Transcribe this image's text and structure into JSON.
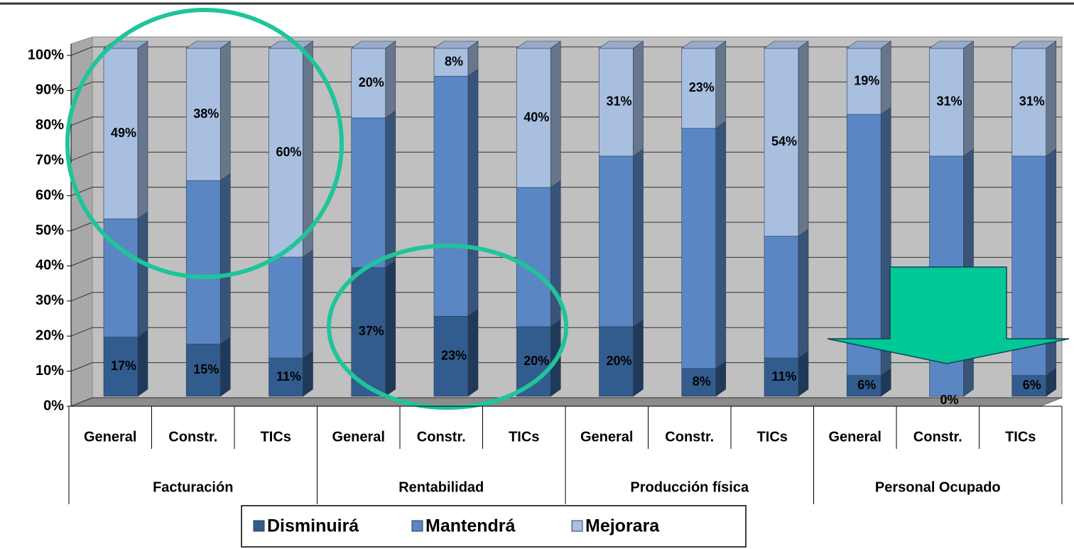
{
  "chart_data": {
    "type": "stacked-bar-3d",
    "categories": [
      "General",
      "Constr.",
      "TICs",
      "General",
      "Constr.",
      "TICs",
      "General",
      "Constr.",
      "TICs",
      "General",
      "Constr.",
      "TICs"
    ],
    "groups": [
      "Facturación",
      "Rentabilidad",
      "Producción física",
      "Personal Ocupado"
    ],
    "series": [
      {
        "name": "Disminuirá",
        "color": "#335c8e",
        "values": [
          17,
          15,
          11,
          37,
          23,
          20,
          20,
          8,
          11,
          6,
          0,
          6
        ],
        "value_labels": [
          "17%",
          "15%",
          "11%",
          "37%",
          "23%",
          "20%",
          "20%",
          "8%",
          "11%",
          "6%",
          "0%",
          "6%"
        ]
      },
      {
        "name": "Mantendrá",
        "color": "#5a87c3",
        "values": [
          34,
          47,
          29,
          43,
          69,
          40,
          49,
          69,
          35,
          75,
          69,
          63
        ]
      },
      {
        "name": "Mejorara",
        "color": "#a8bfe0",
        "values": [
          49,
          38,
          60,
          20,
          8,
          40,
          31,
          23,
          54,
          19,
          31,
          31
        ],
        "value_labels": [
          "49%",
          "38%",
          "60%",
          "20%",
          "8%",
          "40%",
          "31%",
          "23%",
          "54%",
          "19%",
          "31%",
          "31%"
        ]
      }
    ],
    "ylim": [
      0,
      100
    ],
    "yticks": [
      {
        "value": 0,
        "label": "0%"
      },
      {
        "value": 10,
        "label": "10%"
      },
      {
        "value": 20,
        "label": "20%"
      },
      {
        "value": 30,
        "label": "30%"
      },
      {
        "value": 40,
        "label": "40%"
      },
      {
        "value": 50,
        "label": "50%"
      },
      {
        "value": 60,
        "label": "60%"
      },
      {
        "value": 70,
        "label": "70%"
      },
      {
        "value": 80,
        "label": "80%"
      },
      {
        "value": 90,
        "label": "90%"
      },
      {
        "value": 100,
        "label": "100%"
      }
    ],
    "grid": true,
    "stacked": true,
    "legend": "bottom"
  }
}
